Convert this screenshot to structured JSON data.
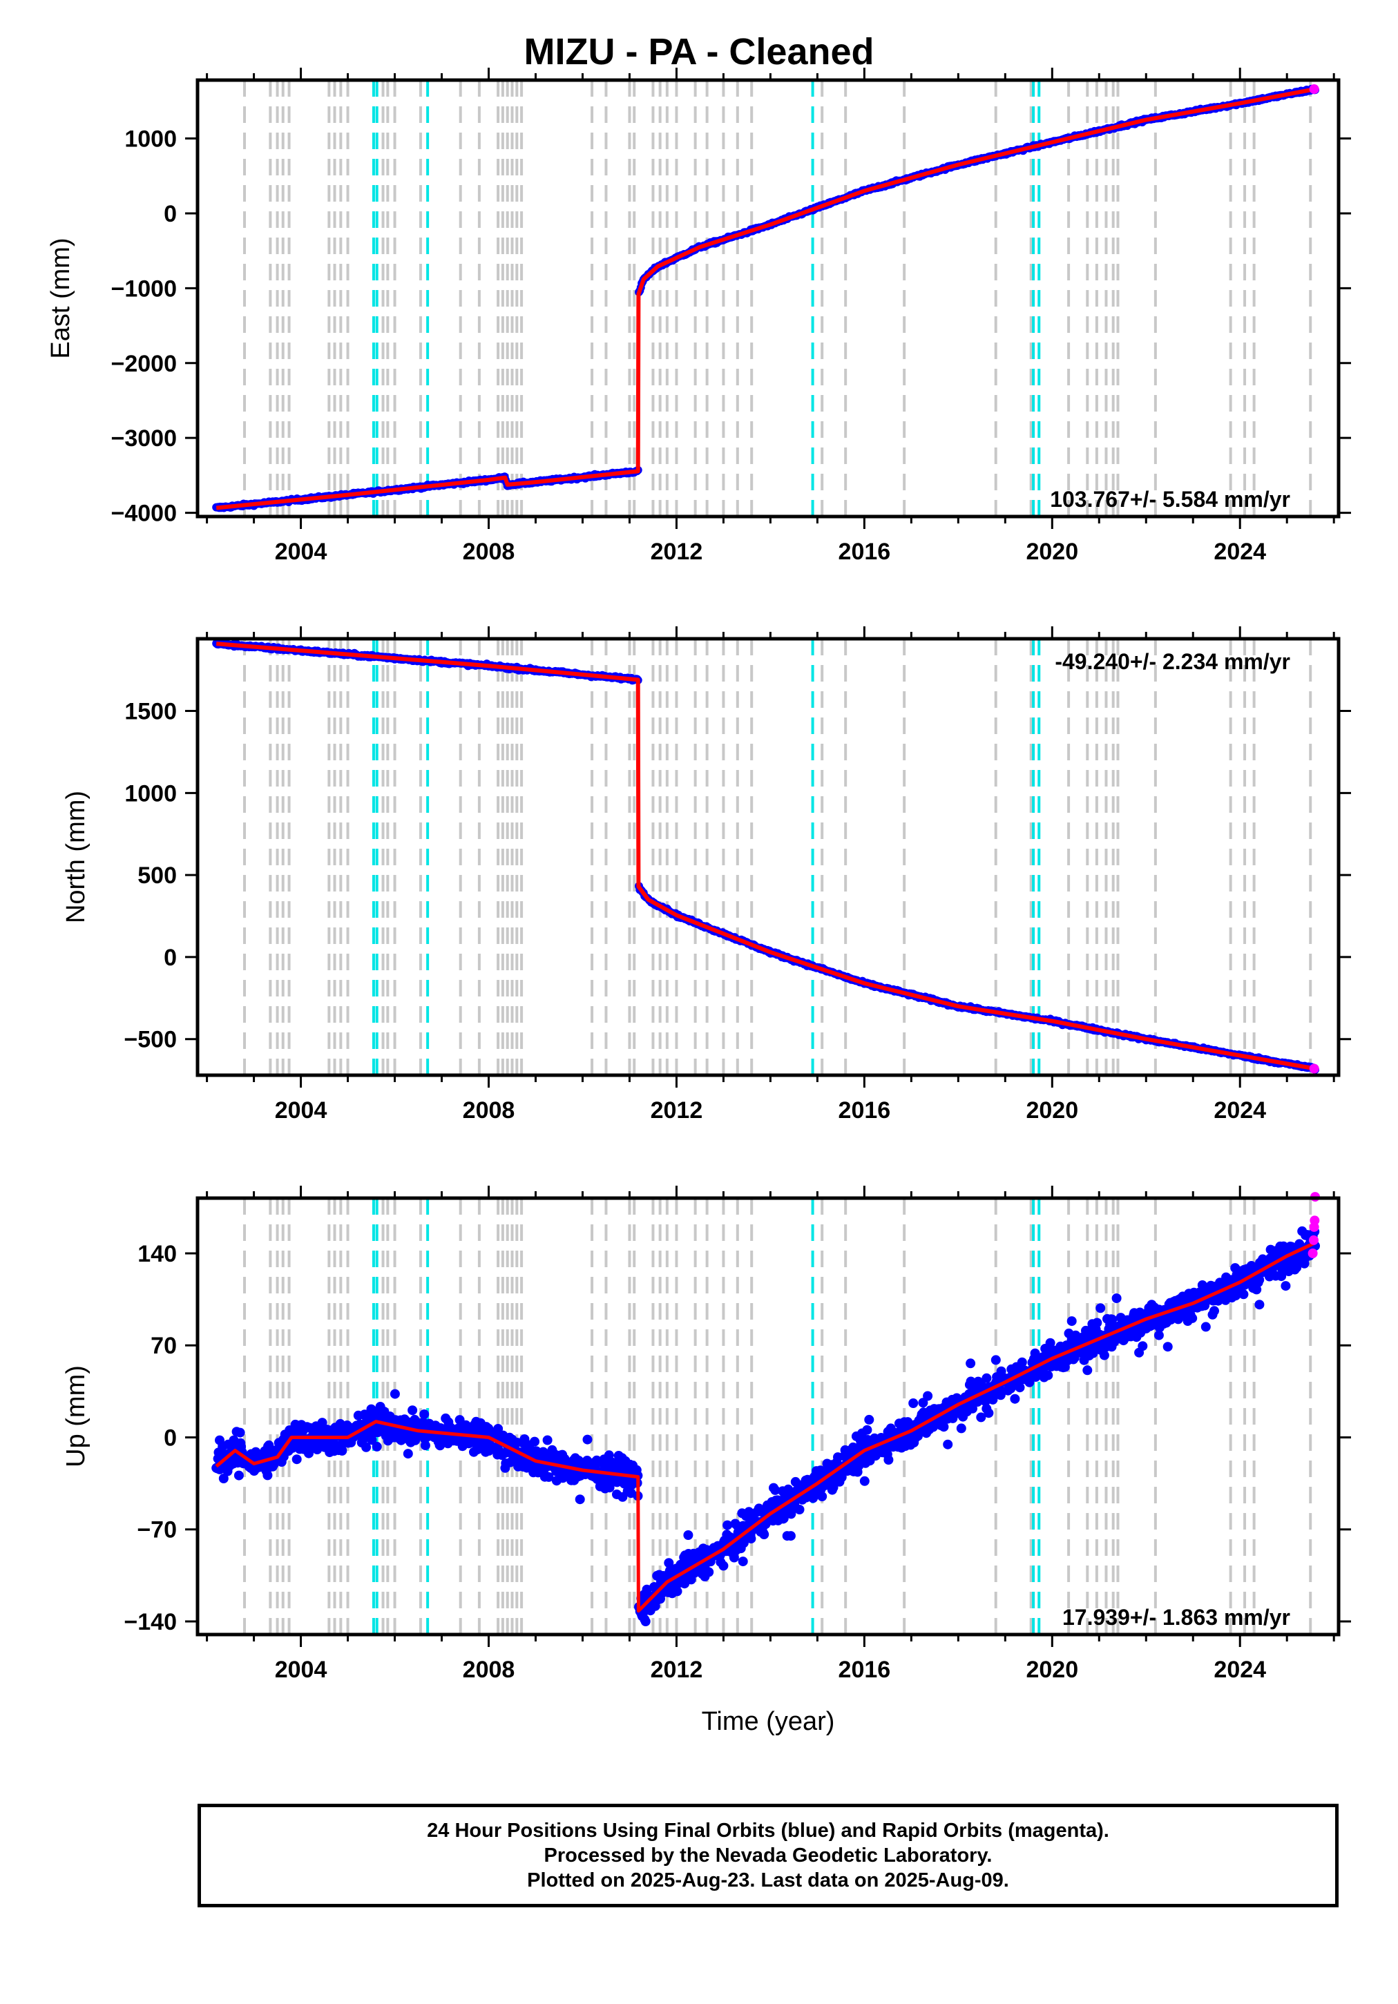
{
  "title": "MIZU  - PA - Cleaned",
  "x_axis_label": "Time (year)",
  "footer": {
    "line1": "24 Hour Positions Using Final Orbits (blue) and Rapid Orbits (magenta).",
    "line2": "Processed by the Nevada Geodetic Laboratory.",
    "line3": "Plotted on 2025-Aug-23. Last data on 2025-Aug-09."
  },
  "colors": {
    "final_orbits": "#0000ff",
    "rapid_orbits": "#ff00ff",
    "model": "#ff0000",
    "equipment_change": "#c8c8c8",
    "earthquake": "#00e5e5"
  },
  "chart_data": [
    {
      "type": "scatter",
      "ylabel": "East (mm)",
      "xlim": [
        2001.8,
        2026.1
      ],
      "ylim": [
        -4050,
        1780
      ],
      "x_ticks": [
        2004,
        2008,
        2012,
        2016,
        2020,
        2024
      ],
      "y_ticks": [
        1000,
        0,
        -1000,
        -2000,
        -3000,
        -4000
      ],
      "y_tick_labels": [
        "1000",
        "0",
        "−1000",
        "−2000",
        "−3000",
        "−4000"
      ],
      "velocity_text": "103.767+/- 5.584 mm/yr",
      "velocity_position": "bottom-right",
      "noise": 12,
      "trend": [
        [
          2002.2,
          -3935
        ],
        [
          2005.0,
          -3760
        ],
        [
          2008.0,
          -3560
        ],
        [
          2008.35,
          -3530
        ],
        [
          2008.4,
          -3625
        ],
        [
          2009.0,
          -3590
        ],
        [
          2011.18,
          -3445
        ],
        [
          2011.19,
          -1080
        ],
        [
          2011.3,
          -880
        ],
        [
          2011.6,
          -710
        ],
        [
          2012.5,
          -450
        ],
        [
          2014.0,
          -150
        ],
        [
          2016.0,
          300
        ],
        [
          2018.0,
          650
        ],
        [
          2020.0,
          950
        ],
        [
          2022.0,
          1250
        ],
        [
          2024.0,
          1470
        ],
        [
          2025.6,
          1660
        ]
      ],
      "rapid_points": [
        [
          2025.58,
          1660
        ]
      ]
    },
    {
      "type": "scatter",
      "ylabel": "North (mm)",
      "xlim": [
        2001.8,
        2026.1
      ],
      "ylim": [
        -720,
        1940
      ],
      "x_ticks": [
        2004,
        2008,
        2012,
        2016,
        2020,
        2024
      ],
      "y_ticks": [
        1500,
        1000,
        500,
        0,
        -500
      ],
      "y_tick_labels": [
        "1500",
        "1000",
        "500",
        "0",
        "−500"
      ],
      "velocity_text": "-49.240+/- 2.234 mm/yr",
      "velocity_position": "top-right",
      "noise": 6,
      "trend": [
        [
          2002.2,
          1910
        ],
        [
          2005.0,
          1845
        ],
        [
          2008.0,
          1775
        ],
        [
          2011.18,
          1690
        ],
        [
          2011.19,
          430
        ],
        [
          2011.4,
          350
        ],
        [
          2012.0,
          255
        ],
        [
          2014.0,
          30
        ],
        [
          2016.0,
          -160
        ],
        [
          2018.0,
          -300
        ],
        [
          2020.0,
          -390
        ],
        [
          2022.0,
          -500
        ],
        [
          2024.0,
          -600
        ],
        [
          2025.6,
          -680
        ]
      ],
      "rapid_points": [
        [
          2025.58,
          -680
        ]
      ]
    },
    {
      "type": "scatter",
      "ylabel": "Up (mm)",
      "xlim": [
        2001.8,
        2026.1
      ],
      "ylim": [
        -150,
        182
      ],
      "x_ticks": [
        2004,
        2008,
        2012,
        2016,
        2020,
        2024
      ],
      "y_ticks": [
        140,
        70,
        0,
        -70,
        -140
      ],
      "y_tick_labels": [
        "140",
        "70",
        "0",
        "−70",
        "−140"
      ],
      "velocity_text": "17.939+/- 1.863 mm/yr",
      "velocity_position": "bottom-right",
      "noise": 8,
      "trend": [
        [
          2002.2,
          -22
        ],
        [
          2002.6,
          -10
        ],
        [
          2003.0,
          -20
        ],
        [
          2003.5,
          -15
        ],
        [
          2003.8,
          0
        ],
        [
          2005.0,
          0
        ],
        [
          2005.6,
          12
        ],
        [
          2006.5,
          5
        ],
        [
          2008.0,
          0
        ],
        [
          2009.0,
          -18
        ],
        [
          2010.0,
          -25
        ],
        [
          2011.18,
          -30
        ],
        [
          2011.19,
          -132
        ],
        [
          2011.8,
          -110
        ],
        [
          2013.0,
          -85
        ],
        [
          2014.0,
          -58
        ],
        [
          2015.0,
          -35
        ],
        [
          2016.0,
          -10
        ],
        [
          2017.0,
          5
        ],
        [
          2018.0,
          25
        ],
        [
          2019.0,
          42
        ],
        [
          2020.0,
          60
        ],
        [
          2021.0,
          75
        ],
        [
          2022.0,
          90
        ],
        [
          2023.0,
          102
        ],
        [
          2024.0,
          118
        ],
        [
          2025.0,
          138
        ],
        [
          2025.6,
          148
        ]
      ],
      "rapid_points": [
        [
          2025.55,
          140
        ],
        [
          2025.57,
          150
        ],
        [
          2025.58,
          160
        ],
        [
          2025.59,
          165
        ],
        [
          2025.6,
          183
        ]
      ]
    }
  ],
  "equipment_changes": [
    2002.8,
    2003.35,
    2003.5,
    2003.62,
    2003.75,
    2004.6,
    2004.72,
    2004.85,
    2005.0,
    2005.75,
    2005.85,
    2006.0,
    2006.55,
    2007.4,
    2007.8,
    2008.2,
    2008.3,
    2008.4,
    2008.5,
    2008.6,
    2008.7,
    2010.2,
    2010.5,
    2011.0,
    2011.1,
    2011.5,
    2011.65,
    2011.8,
    2012.0,
    2012.4,
    2012.65,
    2013.0,
    2013.3,
    2013.6,
    2015.1,
    2015.6,
    2016.85,
    2018.8,
    2019.55,
    2020.35,
    2020.75,
    2020.95,
    2021.15,
    2021.3,
    2021.4,
    2022.2,
    2023.8,
    2024.1,
    2024.3,
    2025.5
  ],
  "earthquakes": [
    2005.55,
    2005.62,
    2006.7,
    2014.9,
    2019.6,
    2019.72
  ]
}
